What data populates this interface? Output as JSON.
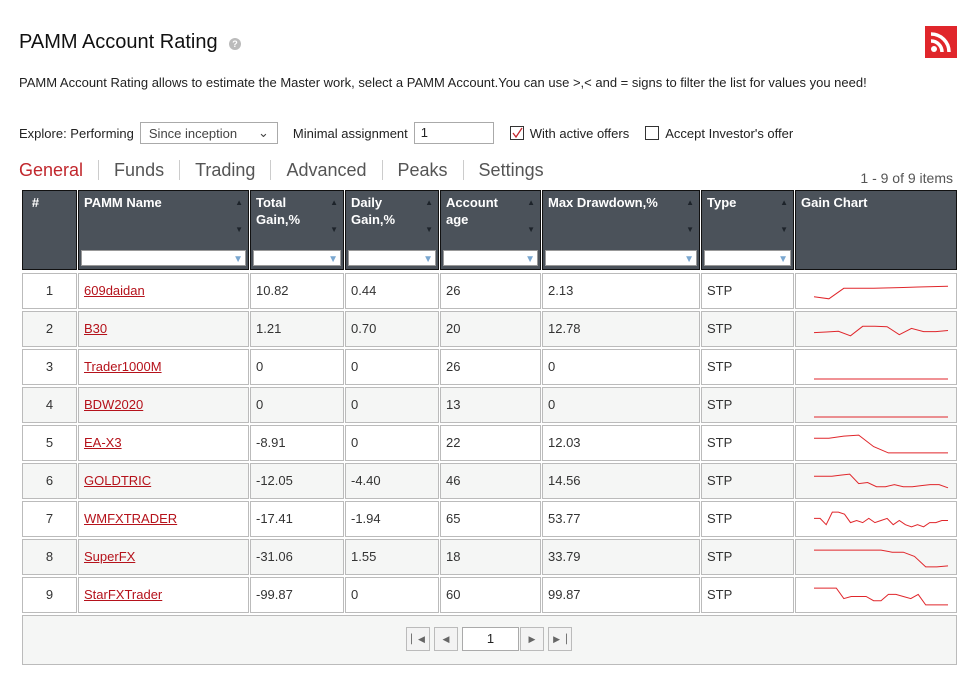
{
  "header": {
    "title": "PAMM Account Rating",
    "help_icon": "question-icon",
    "rss_icon": "rss-icon",
    "accent": "#e0262b"
  },
  "description": "PAMM Account Rating allows to estimate the Master work, select a PAMM Account.You can use >,< and = signs to filter the list for values you need!",
  "filters": {
    "explore_label": "Explore: Performing",
    "period_value": "Since inception",
    "min_label": "Minimal assignment",
    "min_value": "1",
    "active_offers_label": "With active offers",
    "active_offers_checked": true,
    "investor_offer_label": "Accept Investor's offer",
    "investor_offer_checked": false
  },
  "tabs": [
    "General",
    "Funds",
    "Trading",
    "Advanced",
    "Peaks",
    "Settings"
  ],
  "active_tab": "General",
  "items_count": "1 - 9 of 9 items",
  "columns": [
    {
      "label": "#"
    },
    {
      "label": "PAMM Name",
      "sortable": true
    },
    {
      "label": "Total Gain,%",
      "sortable": true
    },
    {
      "label": "Daily Gain,%",
      "sortable": true
    },
    {
      "label": "Account age",
      "sortable": true
    },
    {
      "label": "Max Drawdown,%",
      "sortable": true
    },
    {
      "label": "Type",
      "sortable": true
    },
    {
      "label": "Gain Chart"
    }
  ],
  "rows": [
    {
      "n": "1",
      "name": "609daidan",
      "total": "10.82",
      "daily": "0.44",
      "age": "26",
      "dd": "2.13",
      "type": "STP",
      "spark": [
        3,
        2,
        7,
        7,
        7,
        7.2,
        7.4,
        7.6,
        7.8,
        8
      ]
    },
    {
      "n": "2",
      "name": "B30",
      "total": "1.21",
      "daily": "0.70",
      "age": "20",
      "dd": "12.78",
      "type": "STP",
      "spark": [
        4,
        4.3,
        4.6,
        2.5,
        7,
        7,
        6.8,
        3,
        6,
        4.5,
        4.5,
        5
      ]
    },
    {
      "n": "3",
      "name": "Trader1000M",
      "total": "0",
      "daily": "0",
      "age": "26",
      "dd": "0",
      "type": "STP",
      "spark": [
        0,
        0,
        0,
        0,
        0,
        0
      ]
    },
    {
      "n": "4",
      "name": "BDW2020",
      "total": "0",
      "daily": "0",
      "age": "13",
      "dd": "0",
      "type": "STP",
      "spark": [
        0,
        0,
        0,
        0,
        0,
        0
      ]
    },
    {
      "n": "5",
      "name": "EA-X3",
      "total": "-8.91",
      "daily": "0",
      "age": "22",
      "dd": "12.03",
      "type": "STP",
      "spark": [
        8,
        8,
        9,
        9.5,
        4,
        1,
        1,
        1,
        1,
        1
      ]
    },
    {
      "n": "6",
      "name": "GOLDTRIC",
      "total": "-12.05",
      "daily": "-4.40",
      "age": "46",
      "dd": "14.56",
      "type": "STP",
      "spark": [
        8,
        8,
        8,
        8.5,
        9,
        4.5,
        5,
        3,
        3,
        4,
        3,
        3,
        3.5,
        4,
        4,
        2.5
      ]
    },
    {
      "n": "7",
      "name": "WMFXTRADER",
      "total": "-17.41",
      "daily": "-1.94",
      "age": "65",
      "dd": "53.77",
      "type": "STP",
      "spark": [
        6,
        6,
        3,
        9,
        9,
        8,
        4,
        5,
        4,
        6,
        4,
        5,
        6,
        3,
        5,
        3,
        2,
        3,
        2,
        4,
        4,
        5,
        5
      ]
    },
    {
      "n": "8",
      "name": "SuperFX",
      "total": "-31.06",
      "daily": "1.55",
      "age": "18",
      "dd": "33.79",
      "type": "STP",
      "spark": [
        9,
        9,
        9,
        9,
        9,
        9,
        9,
        8,
        8,
        6,
        1,
        1,
        1.5
      ]
    },
    {
      "n": "9",
      "name": "StarFXTrader",
      "total": "-99.87",
      "daily": "0",
      "age": "60",
      "dd": "99.87",
      "type": "STP",
      "spark": [
        9,
        9,
        9,
        9,
        4,
        5,
        5,
        5,
        3,
        3,
        6,
        6,
        5,
        4,
        6,
        1,
        1,
        1,
        1
      ]
    }
  ],
  "pager": {
    "page": "1",
    "first_icon": "first-page-icon",
    "prev_icon": "prev-page-icon",
    "next_icon": "next-page-icon",
    "last_icon": "last-page-icon"
  },
  "spark_color": "#e0262b"
}
